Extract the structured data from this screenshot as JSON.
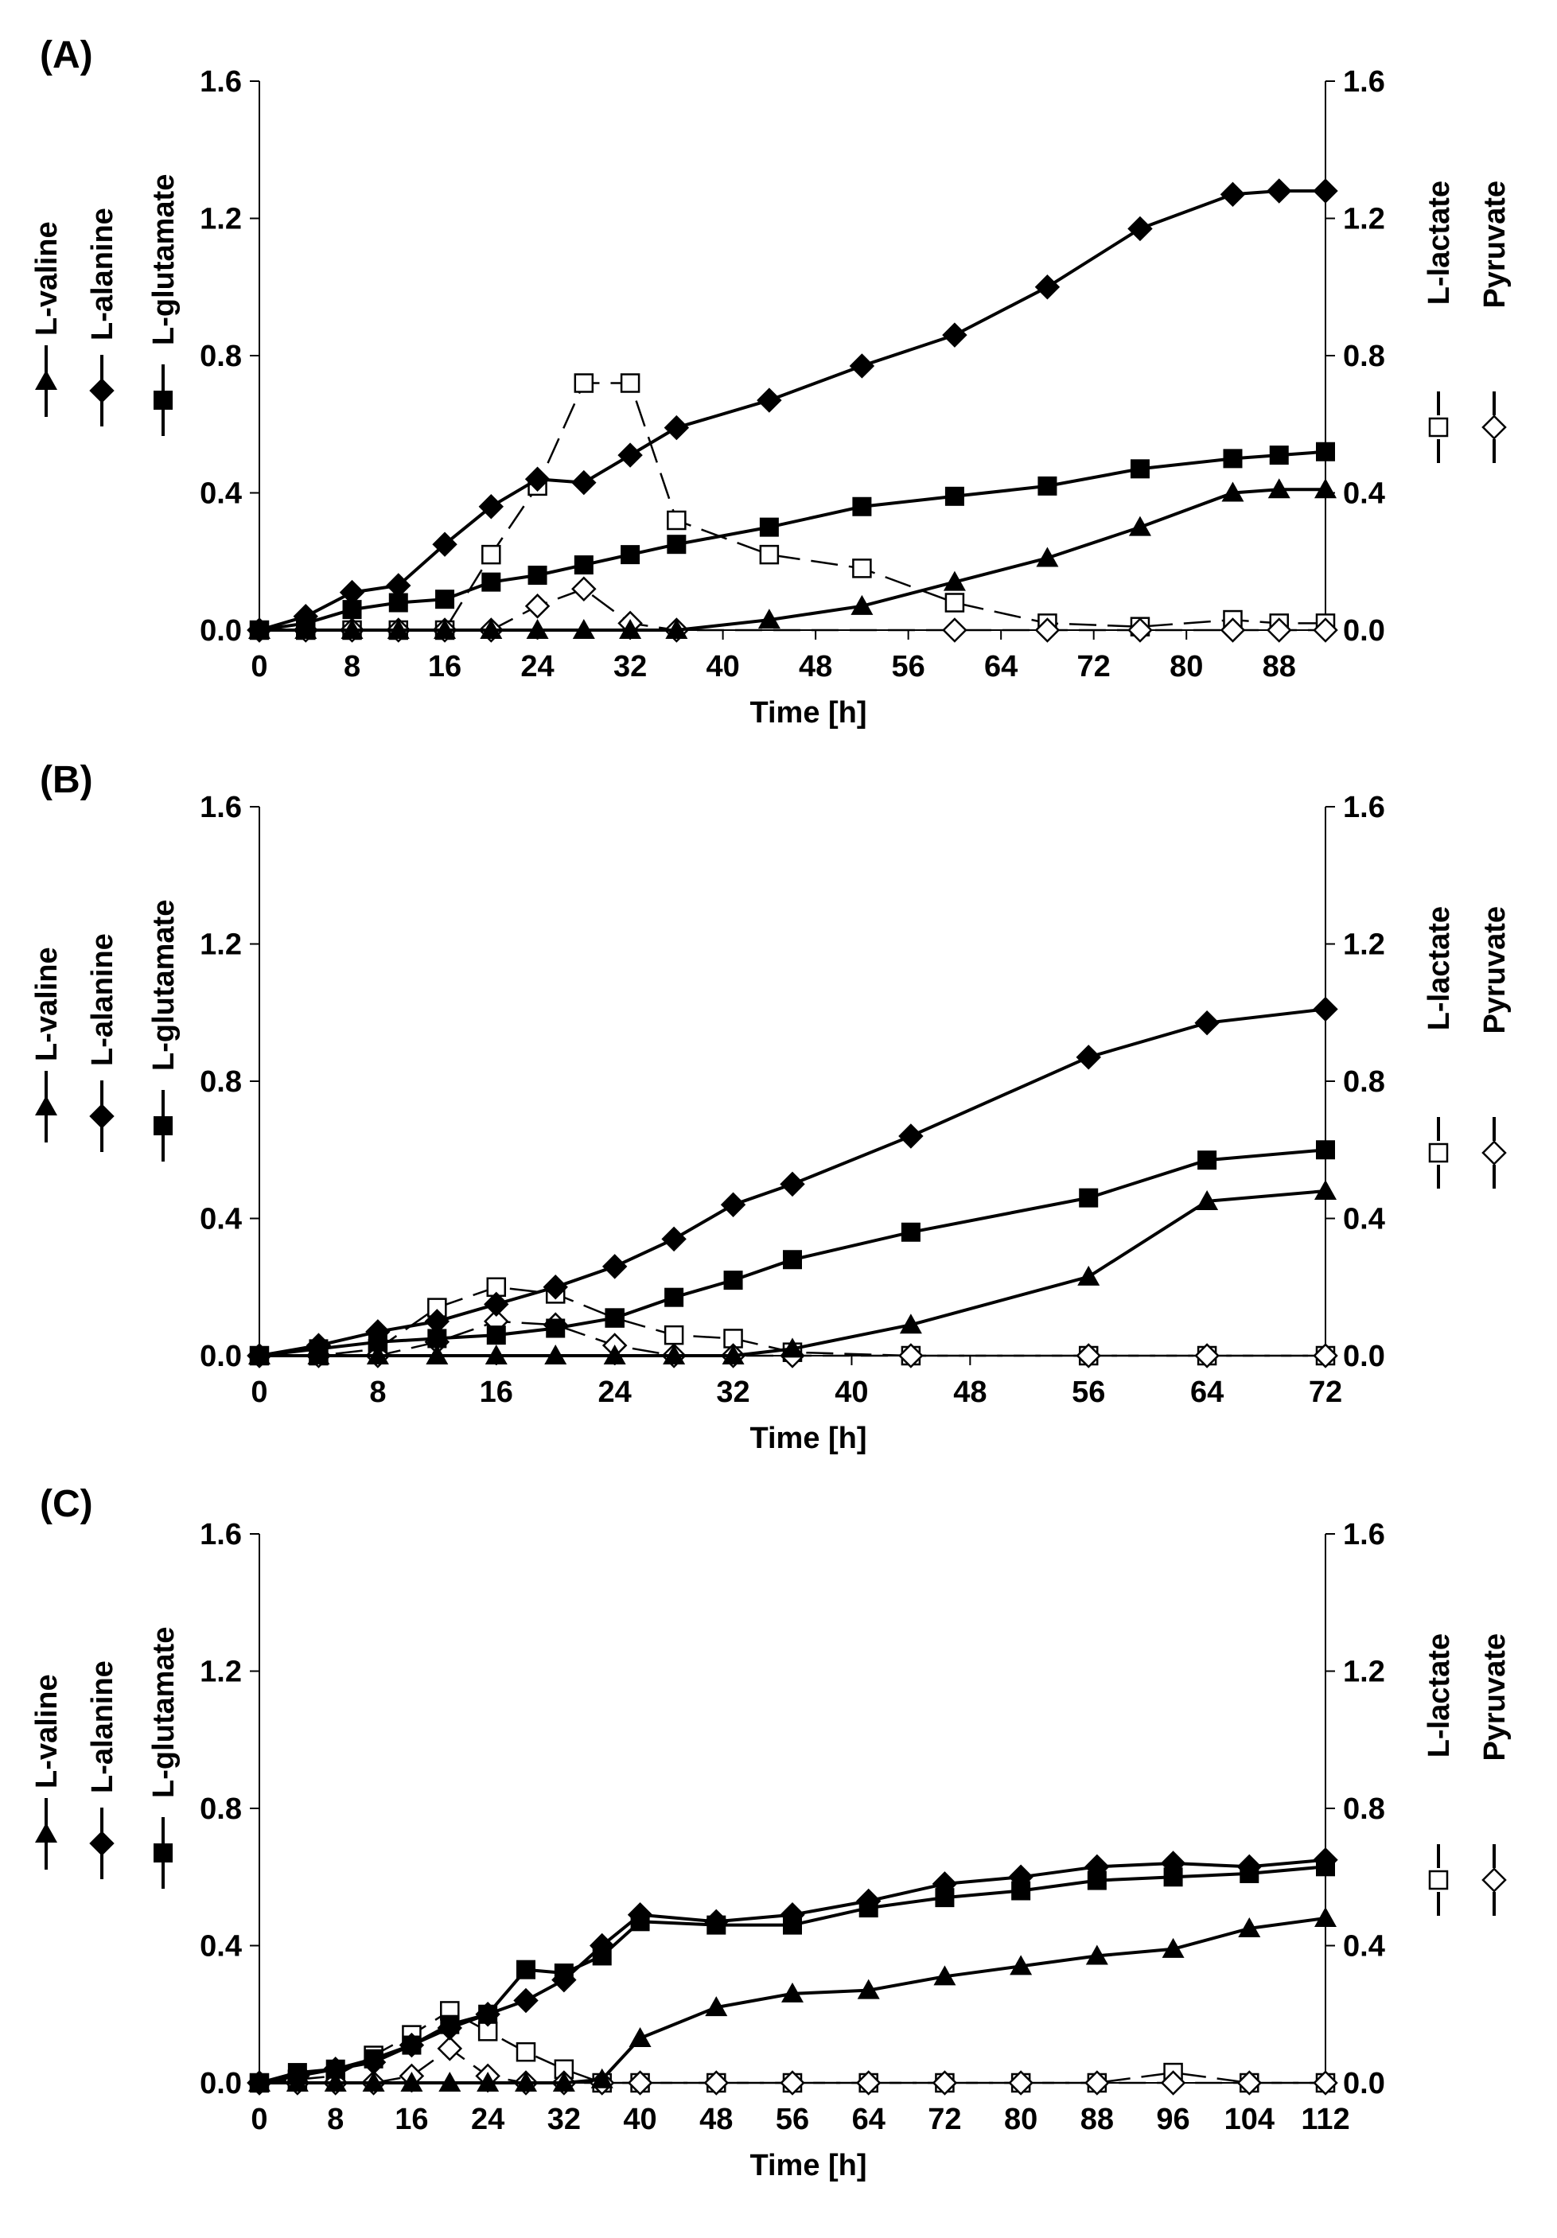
{
  "chart_data": [
    {
      "panel_label": "(A)",
      "type": "line",
      "xlabel": "Time [h]",
      "xlim": [
        0,
        92
      ],
      "xticks": [
        0,
        8,
        16,
        24,
        32,
        40,
        48,
        56,
        64,
        72,
        80,
        88
      ],
      "ylim": [
        0,
        1.6
      ],
      "yticks": [
        "0.0",
        "0.4",
        "0.8",
        "1.2",
        "1.6"
      ],
      "y2ticks": [
        "0.0",
        "0.4",
        "0.8",
        "1.2",
        "1.6"
      ],
      "left_legend": [
        "L-valine",
        "L-alanine",
        "L-glutamate"
      ],
      "right_legend": [
        "L-lactate",
        "Pyruvate"
      ],
      "series": [
        {
          "name": "L-alanine",
          "marker": "diamond-filled",
          "axis": "left",
          "x": [
            0,
            4,
            8,
            12,
            16,
            20,
            24,
            28,
            32,
            36,
            44,
            52,
            60,
            68,
            76,
            84,
            88,
            92
          ],
          "y": [
            0,
            0.04,
            0.11,
            0.13,
            0.25,
            0.36,
            0.44,
            0.43,
            0.51,
            0.59,
            0.67,
            0.77,
            0.86,
            1.0,
            1.17,
            1.27,
            1.28,
            1.28
          ]
        },
        {
          "name": "L-glutamate",
          "marker": "square-filled",
          "axis": "left",
          "x": [
            0,
            4,
            8,
            12,
            16,
            20,
            24,
            28,
            32,
            36,
            44,
            52,
            60,
            68,
            76,
            84,
            88,
            92
          ],
          "y": [
            0,
            0.02,
            0.06,
            0.08,
            0.09,
            0.14,
            0.16,
            0.19,
            0.22,
            0.25,
            0.3,
            0.36,
            0.39,
            0.42,
            0.47,
            0.5,
            0.51,
            0.52
          ]
        },
        {
          "name": "L-valine",
          "marker": "triangle-filled",
          "axis": "left",
          "x": [
            0,
            4,
            8,
            12,
            16,
            20,
            24,
            28,
            32,
            36,
            44,
            52,
            60,
            68,
            76,
            84,
            88,
            92
          ],
          "y": [
            0,
            0,
            0,
            0,
            0,
            0,
            0,
            0,
            0,
            0,
            0.03,
            0.07,
            0.14,
            0.21,
            0.3,
            0.4,
            0.41,
            0.41
          ]
        },
        {
          "name": "L-lactate",
          "marker": "square-open",
          "axis": "right",
          "dashed": true,
          "x": [
            0,
            4,
            8,
            12,
            16,
            20,
            24,
            28,
            32,
            36,
            44,
            52,
            60,
            68,
            76,
            84,
            88,
            92
          ],
          "y": [
            0,
            0,
            0,
            0,
            0,
            0.22,
            0.42,
            0.72,
            0.72,
            0.32,
            0.22,
            0.18,
            0.08,
            0.02,
            0.01,
            0.03,
            0.02,
            0.02
          ]
        },
        {
          "name": "Pyruvate",
          "marker": "diamond-open",
          "axis": "right",
          "dashed": true,
          "x": [
            0,
            4,
            8,
            12,
            16,
            20,
            24,
            28,
            32,
            36,
            60,
            68,
            76,
            84,
            88,
            92
          ],
          "y": [
            0,
            0,
            0,
            0,
            0,
            0,
            0.07,
            0.12,
            0.02,
            0,
            0,
            0,
            0,
            0,
            0,
            0
          ]
        }
      ]
    },
    {
      "panel_label": "(B)",
      "type": "line",
      "xlabel": "Time [h]",
      "xlim": [
        0,
        72
      ],
      "xticks": [
        0,
        8,
        16,
        24,
        32,
        40,
        48,
        56,
        64,
        72
      ],
      "ylim": [
        0,
        1.6
      ],
      "yticks": [
        "0.0",
        "0.4",
        "0.8",
        "1.2",
        "1.6"
      ],
      "y2ticks": [
        "0.0",
        "0.4",
        "0.8",
        "1.2",
        "1.6"
      ],
      "left_legend": [
        "L-valine",
        "L-alanine",
        "L-glutamate"
      ],
      "right_legend": [
        "L-lactate",
        "Pyruvate"
      ],
      "series": [
        {
          "name": "L-alanine",
          "marker": "diamond-filled",
          "axis": "left",
          "x": [
            0,
            4,
            8,
            12,
            16,
            20,
            24,
            28,
            32,
            36,
            44,
            56,
            64,
            72
          ],
          "y": [
            0,
            0.03,
            0.07,
            0.1,
            0.15,
            0.2,
            0.26,
            0.34,
            0.44,
            0.5,
            0.64,
            0.87,
            0.97,
            1.01
          ]
        },
        {
          "name": "L-glutamate",
          "marker": "square-filled",
          "axis": "left",
          "x": [
            0,
            4,
            8,
            12,
            16,
            20,
            24,
            28,
            32,
            36,
            44,
            56,
            64,
            72
          ],
          "y": [
            0,
            0.02,
            0.04,
            0.05,
            0.06,
            0.08,
            0.11,
            0.17,
            0.22,
            0.28,
            0.36,
            0.46,
            0.57,
            0.6
          ]
        },
        {
          "name": "L-valine",
          "marker": "triangle-filled",
          "axis": "left",
          "x": [
            0,
            4,
            8,
            12,
            16,
            20,
            24,
            28,
            32,
            36,
            44,
            56,
            64,
            72
          ],
          "y": [
            0,
            0,
            0,
            0,
            0,
            0,
            0,
            0,
            0,
            0.02,
            0.09,
            0.23,
            0.45,
            0.48
          ]
        },
        {
          "name": "L-lactate",
          "marker": "square-open",
          "axis": "right",
          "dashed": true,
          "x": [
            0,
            4,
            8,
            12,
            16,
            20,
            24,
            28,
            32,
            36,
            44,
            56,
            64,
            72
          ],
          "y": [
            0,
            0,
            0.02,
            0.14,
            0.2,
            0.18,
            0.11,
            0.06,
            0.05,
            0.01,
            0,
            0,
            0,
            0
          ]
        },
        {
          "name": "Pyruvate",
          "marker": "diamond-open",
          "axis": "right",
          "dashed": true,
          "x": [
            0,
            4,
            8,
            12,
            16,
            20,
            24,
            28,
            32,
            36,
            44,
            56,
            64,
            72
          ],
          "y": [
            0,
            0,
            0,
            0.04,
            0.1,
            0.09,
            0.03,
            0,
            0,
            0,
            0,
            0,
            0,
            0
          ]
        }
      ]
    },
    {
      "panel_label": "(C)",
      "type": "line",
      "xlabel": "Time [h]",
      "xlim": [
        0,
        112
      ],
      "xticks": [
        0,
        8,
        16,
        24,
        32,
        40,
        48,
        56,
        64,
        72,
        80,
        88,
        96,
        104,
        112
      ],
      "ylim": [
        0,
        1.6
      ],
      "yticks": [
        "0.0",
        "0.4",
        "0.8",
        "1.2",
        "1.6"
      ],
      "y2ticks": [
        "0.0",
        "0.4",
        "0.8",
        "1.2",
        "1.6"
      ],
      "left_legend": [
        "L-valine",
        "L-alanine",
        "L-glutamate"
      ],
      "right_legend": [
        "L-lactate",
        "Pyruvate"
      ],
      "series": [
        {
          "name": "L-alanine",
          "marker": "diamond-filled",
          "axis": "left",
          "x": [
            0,
            4,
            8,
            12,
            16,
            20,
            24,
            28,
            32,
            36,
            40,
            48,
            56,
            64,
            72,
            80,
            88,
            96,
            104,
            112
          ],
          "y": [
            0,
            0.02,
            0.04,
            0.06,
            0.11,
            0.16,
            0.2,
            0.24,
            0.3,
            0.4,
            0.49,
            0.47,
            0.49,
            0.53,
            0.58,
            0.6,
            0.63,
            0.64,
            0.63,
            0.65
          ]
        },
        {
          "name": "L-glutamate",
          "marker": "square-filled",
          "axis": "left",
          "x": [
            0,
            4,
            8,
            12,
            16,
            20,
            24,
            28,
            32,
            36,
            40,
            48,
            56,
            64,
            72,
            80,
            88,
            96,
            104,
            112
          ],
          "y": [
            0,
            0.03,
            0.04,
            0.07,
            0.11,
            0.17,
            0.2,
            0.33,
            0.32,
            0.37,
            0.47,
            0.46,
            0.46,
            0.51,
            0.54,
            0.56,
            0.59,
            0.6,
            0.61,
            0.63
          ]
        },
        {
          "name": "L-valine",
          "marker": "triangle-filled",
          "axis": "left",
          "x": [
            0,
            4,
            8,
            12,
            16,
            20,
            24,
            28,
            32,
            36,
            40,
            48,
            56,
            64,
            72,
            80,
            88,
            96,
            104,
            112
          ],
          "y": [
            0,
            0,
            0,
            0,
            0,
            0,
            0,
            0,
            0,
            0.01,
            0.13,
            0.22,
            0.26,
            0.27,
            0.31,
            0.34,
            0.37,
            0.39,
            0.45,
            0.48
          ]
        },
        {
          "name": "L-lactate",
          "marker": "square-open",
          "axis": "right",
          "dashed": true,
          "x": [
            0,
            4,
            8,
            12,
            16,
            20,
            24,
            28,
            32,
            36,
            40,
            48,
            56,
            64,
            72,
            80,
            88,
            96,
            104,
            112
          ],
          "y": [
            0,
            0.01,
            0.02,
            0.08,
            0.14,
            0.21,
            0.15,
            0.09,
            0.04,
            0,
            0,
            0,
            0,
            0,
            0,
            0,
            0,
            0.03,
            0,
            0
          ]
        },
        {
          "name": "Pyruvate",
          "marker": "diamond-open",
          "axis": "right",
          "dashed": true,
          "x": [
            0,
            4,
            8,
            12,
            16,
            20,
            24,
            28,
            32,
            36,
            40,
            48,
            56,
            64,
            72,
            80,
            88,
            96,
            104,
            112
          ],
          "y": [
            0,
            0,
            0,
            0,
            0.02,
            0.1,
            0.02,
            0,
            0,
            0,
            0,
            0,
            0,
            0,
            0,
            0,
            0,
            0,
            0,
            0
          ]
        }
      ]
    }
  ]
}
